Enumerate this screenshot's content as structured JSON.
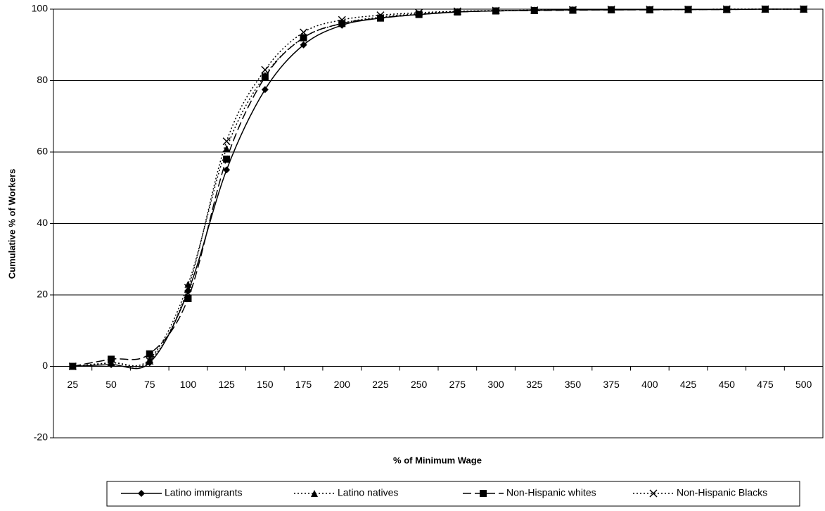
{
  "chart_data": {
    "type": "line",
    "x_label": "% of Minimum Wage",
    "y_label": "Cumulative % of Workers",
    "categories": [
      25,
      50,
      75,
      100,
      125,
      150,
      175,
      200,
      225,
      250,
      275,
      300,
      325,
      350,
      375,
      400,
      425,
      450,
      475,
      500
    ],
    "ylim": [
      -20,
      100
    ],
    "yticks": [
      -20,
      0,
      20,
      40,
      60,
      80,
      100
    ],
    "grid": true,
    "series": [
      {
        "name": "Latino immigrants",
        "color": "#000000",
        "marker": "diamond",
        "dash": "solid",
        "values": [
          0,
          0.5,
          1,
          21,
          55,
          77.5,
          90,
          95.5,
          97.5,
          98.5,
          99.2,
          99.5,
          99.7,
          99.8,
          99.8,
          99.9,
          99.9,
          99.9,
          100,
          100
        ]
      },
      {
        "name": "Latino natives",
        "color": "#000000",
        "marker": "triangle",
        "dash": "dotted",
        "values": [
          0,
          1,
          2,
          23,
          61,
          81.5,
          92,
          96,
          97.8,
          98.7,
          99.3,
          99.6,
          99.7,
          99.8,
          99.9,
          99.9,
          99.9,
          100,
          100,
          100
        ]
      },
      {
        "name": "Non-Hispanic whites",
        "color": "#000000",
        "marker": "square",
        "dash": "dashed",
        "values": [
          0,
          2,
          3.5,
          19,
          58,
          81,
          92,
          96,
          97.5,
          98.5,
          99.2,
          99.5,
          99.6,
          99.7,
          99.8,
          99.8,
          99.9,
          99.9,
          100,
          100
        ]
      },
      {
        "name": "Non-Hispanic Blacks",
        "color": "#000000",
        "marker": "x",
        "dash": "dotted",
        "values": [
          0,
          1,
          1.5,
          22,
          63,
          83,
          93.5,
          97,
          98.3,
          99,
          99.4,
          99.6,
          99.7,
          99.8,
          99.9,
          99.9,
          99.9,
          100,
          100,
          100
        ]
      }
    ]
  }
}
